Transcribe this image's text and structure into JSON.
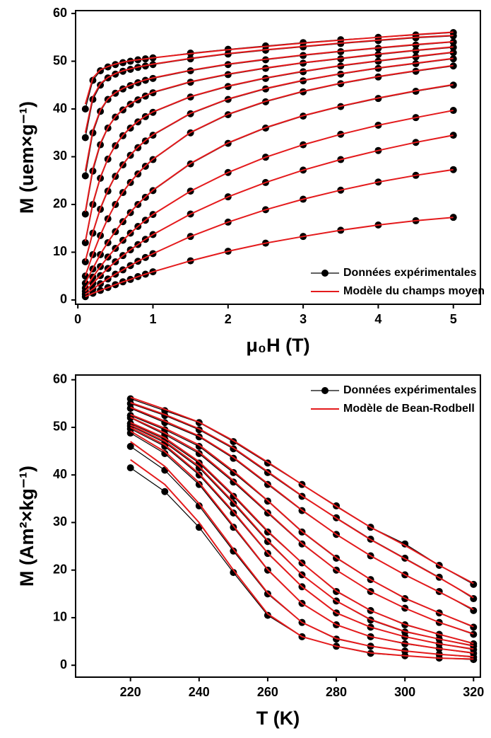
{
  "chart_data": [
    {
      "type": "line",
      "x_label": "μ₀H (T)",
      "y_label": "M (uem×g⁻¹)",
      "x": [
        0.1,
        0.2,
        0.3,
        0.4,
        0.5,
        0.6,
        0.7,
        0.8,
        0.9,
        1.0,
        1.5,
        2,
        2.5,
        3,
        3.5,
        4,
        4.5,
        5
      ],
      "xlim": [
        -0.03,
        5.36
      ],
      "ylim": [
        -0.9,
        60.6
      ],
      "xticks": [
        0,
        1,
        2,
        3,
        4,
        5
      ],
      "yticks": [
        0,
        10,
        20,
        30,
        40,
        50,
        60
      ],
      "legend": "lower right",
      "series": [
        {
          "name": "Données expérimentales",
          "color": "#000000",
          "markers": true,
          "curves": [
            [
              40,
              46,
              48,
              48.8,
              49.3,
              49.7,
              50,
              50.3,
              50.5,
              50.7,
              51.7,
              52.5,
              53.2,
              53.9,
              54.5,
              55,
              55.5,
              56
            ],
            [
              34,
              42,
              45,
              46.5,
              47.3,
              47.9,
              48.3,
              48.7,
              49,
              49.3,
              50.5,
              51.5,
              52.3,
              53,
              53.7,
              54.3,
              54.9,
              55.3
            ],
            [
              26,
              35,
              39.5,
              42,
              43.3,
              44.2,
              44.9,
              45.5,
              46,
              46.4,
              48,
              49.3,
              50.3,
              51.2,
              52,
              52.7,
              53.4,
              54
            ],
            [
              18,
              27,
              32.5,
              36,
              38.3,
              39.8,
              41,
              41.9,
              42.7,
              43.4,
              45.6,
              47.2,
              48.5,
              49.6,
              50.5,
              51.4,
              52.2,
              52.9
            ],
            [
              12,
              20,
              25.5,
              29.5,
              32.3,
              34.4,
              36,
              37.3,
              38.4,
              39.3,
              42.5,
              44.7,
              46.4,
              47.8,
              49,
              50,
              50.9,
              51.8
            ],
            [
              8,
              14,
              19,
              22.8,
              25.9,
              28.3,
              30.3,
              31.9,
              33.3,
              34.5,
              39,
              42,
              44.2,
              45.9,
              47.3,
              48.5,
              49.5,
              50.5
            ],
            [
              5,
              9.5,
              13.5,
              17,
              20,
              22.5,
              24.6,
              26.4,
              28,
              29.4,
              35,
              38.8,
              41.5,
              43.6,
              45.3,
              46.7,
              47.9,
              49
            ],
            [
              3.5,
              6.5,
              9.5,
              12,
              14.3,
              16.4,
              18.3,
              20,
              21.5,
              22.9,
              28.5,
              32.8,
              36,
              38.5,
              40.5,
              42.2,
              43.7,
              45
            ],
            [
              2.5,
              4.8,
              7,
              9,
              10.8,
              12.5,
              14,
              15.4,
              16.7,
              17.9,
              22.8,
              26.7,
              29.9,
              32.5,
              34.7,
              36.6,
              38.2,
              39.7
            ],
            [
              1.8,
              3.5,
              5.1,
              6.6,
              8,
              9.3,
              10.5,
              11.6,
              12.7,
              13.7,
              18,
              21.6,
              24.6,
              27.2,
              29.4,
              31.3,
              33,
              34.5
            ],
            [
              1.2,
              2.3,
              3.4,
              4.4,
              5.4,
              6.3,
              7.2,
              8.1,
              8.9,
              9.7,
              13.3,
              16.3,
              18.9,
              21.1,
              23,
              24.7,
              26.1,
              27.3
            ],
            [
              0.7,
              1.4,
              2,
              2.6,
              3.2,
              3.8,
              4.3,
              4.9,
              5.4,
              5.9,
              8.2,
              10.2,
              11.9,
              13.3,
              14.6,
              15.7,
              16.6,
              17.3
            ]
          ]
        },
        {
          "name": "Modèle du champs moyen",
          "color": "#e41a1c",
          "markers": false,
          "curves": [
            [
              41,
              46.5,
              48.2,
              48.9,
              49.4,
              49.8,
              50.1,
              50.3,
              50.5,
              50.7,
              51.6,
              52.4,
              53.1,
              53.8,
              54.4,
              55,
              55.6,
              56.1
            ],
            [
              35,
              42.5,
              45.3,
              46.6,
              47.4,
              48,
              48.4,
              48.8,
              49.1,
              49.4,
              50.6,
              51.6,
              52.4,
              53.1,
              53.8,
              54.4,
              55,
              55.4
            ],
            [
              27,
              35.5,
              39.8,
              42.1,
              43.4,
              44.3,
              45,
              45.6,
              46.1,
              46.5,
              48.1,
              49.4,
              50.4,
              51.3,
              52.1,
              52.8,
              53.5,
              54.1
            ],
            [
              18.5,
              27.5,
              32.8,
              36.1,
              38.4,
              39.9,
              41.1,
              42,
              42.8,
              43.5,
              45.7,
              47.3,
              48.6,
              49.7,
              50.6,
              51.5,
              52.3,
              53
            ],
            [
              12.3,
              20.3,
              25.7,
              29.6,
              32.4,
              34.5,
              36.1,
              37.4,
              38.5,
              39.4,
              42.6,
              44.8,
              46.5,
              47.9,
              49.1,
              50.1,
              51,
              51.9
            ],
            [
              8.2,
              14.2,
              19.2,
              23,
              26,
              28.4,
              30.4,
              32,
              33.4,
              34.6,
              39.1,
              42.1,
              44.3,
              46,
              47.4,
              48.6,
              49.6,
              50.6
            ],
            [
              5.1,
              9.6,
              13.6,
              17.1,
              20.1,
              22.6,
              24.7,
              26.5,
              28.1,
              29.5,
              35.1,
              38.9,
              41.6,
              43.7,
              45.4,
              46.8,
              48,
              49.1
            ],
            [
              3.6,
              6.6,
              9.6,
              12.1,
              14.4,
              16.5,
              18.4,
              20.1,
              21.6,
              23,
              28.6,
              32.9,
              36.1,
              38.6,
              40.6,
              42.3,
              43.8,
              45.1
            ],
            [
              2.5,
              4.8,
              7,
              9,
              10.8,
              12.5,
              14,
              15.4,
              16.7,
              17.9,
              22.8,
              26.7,
              29.9,
              32.5,
              34.7,
              36.6,
              38.2,
              39.7
            ],
            [
              1.8,
              3.5,
              5.1,
              6.6,
              8,
              9.3,
              10.5,
              11.6,
              12.7,
              13.7,
              18,
              21.6,
              24.6,
              27.2,
              29.4,
              31.3,
              33,
              34.5
            ],
            [
              1.2,
              2.3,
              3.4,
              4.4,
              5.4,
              6.3,
              7.2,
              8.1,
              8.9,
              9.7,
              13.3,
              16.3,
              18.9,
              21.1,
              23,
              24.7,
              26.1,
              27.3
            ],
            [
              0.7,
              1.4,
              2,
              2.6,
              3.2,
              3.8,
              4.3,
              4.9,
              5.4,
              5.9,
              8.2,
              10.2,
              11.9,
              13.3,
              14.6,
              15.7,
              16.6,
              17.3
            ]
          ]
        }
      ]
    },
    {
      "type": "line",
      "x_label": "T (K)",
      "y_label": "M (Am²×kg⁻¹)",
      "x": [
        220,
        230,
        240,
        250,
        260,
        270,
        280,
        290,
        300,
        310,
        320
      ],
      "xlim": [
        204,
        322
      ],
      "ylim": [
        -2.5,
        61
      ],
      "xticks": [
        220,
        240,
        260,
        280,
        300,
        320
      ],
      "yticks": [
        0,
        10,
        20,
        30,
        40,
        50,
        60
      ],
      "legend": "upper right",
      "series": [
        {
          "name": "Données expérimentales",
          "color": "#000000",
          "markers": true,
          "curves": [
            [
              56,
              53.5,
              51,
              47,
              42.5,
              38,
              33.5,
              29,
              25.5,
              21,
              17
            ],
            [
              55,
              52.5,
              49.5,
              45.5,
              40.5,
              35.5,
              31,
              26.5,
              22.5,
              18.5,
              14
            ],
            [
              54,
              51,
              48,
              43.5,
              38,
              32.5,
              27.5,
              23,
              19,
              15.5,
              11.5
            ],
            [
              52.5,
              49.5,
              46,
              40.5,
              34.5,
              28,
              22.5,
              18,
              14,
              11,
              8
            ],
            [
              52,
              48.5,
              44.5,
              38.5,
              32,
              25.5,
              20,
              15.5,
              12,
              9,
              6.5
            ],
            [
              50.8,
              47.5,
              42.5,
              35.5,
              28,
              21.5,
              15.5,
              11.5,
              8.5,
              6.5,
              4.5
            ],
            [
              50.3,
              46.8,
              41.5,
              34,
              26,
              19,
              13.5,
              9.5,
              7,
              5.5,
              4
            ],
            [
              49.7,
              46,
              40,
              32,
              23.5,
              16.5,
              11,
              8,
              6,
              4.5,
              3.3
            ],
            [
              48.8,
              44.5,
              38,
              29,
              20,
              13,
              8.5,
              6,
              4.5,
              3.5,
              2.5
            ],
            [
              46,
              41,
              33.5,
              24,
              15,
              9,
              5.5,
              4,
              3,
              2.3,
              1.7
            ],
            [
              41.5,
              36.5,
              29,
              19.5,
              10.5,
              6,
              4,
              2.5,
              2,
              1.5,
              1.2
            ]
          ]
        },
        {
          "name": "Modèle de Bean-Rodbell",
          "color": "#e41a1c",
          "markers": false,
          "curves": [
            [
              56.3,
              53.8,
              51.1,
              47.2,
              42.7,
              38,
              33.4,
              29,
              25.2,
              21,
              17.2
            ],
            [
              55.2,
              52.7,
              49.7,
              45.7,
              40.7,
              35.6,
              30.9,
              26.4,
              22.4,
              18.4,
              14.2
            ],
            [
              54.2,
              51.3,
              48.2,
              43.7,
              38.2,
              32.6,
              27.5,
              23,
              19,
              15.4,
              11.7
            ],
            [
              52.7,
              49.8,
              46.3,
              40.8,
              34.6,
              28.1,
              22.6,
              18,
              14.1,
              11,
              8.1
            ],
            [
              52.1,
              48.8,
              44.8,
              38.8,
              32.2,
              25.6,
              20,
              15.5,
              12,
              9,
              6.6
            ],
            [
              51,
              47.8,
              42.8,
              35.8,
              28.2,
              21.5,
              15.6,
              11.5,
              8.6,
              6.5,
              4.6
            ],
            [
              50.5,
              47.1,
              41.8,
              34.3,
              26.2,
              19,
              13.5,
              9.6,
              7.1,
              5.5,
              4.1
            ],
            [
              50,
              46.3,
              40.3,
              32.3,
              23.6,
              16.5,
              11,
              8,
              6,
              4.5,
              3.4
            ],
            [
              49.2,
              44.9,
              38.4,
              29.3,
              20.1,
              13,
              8.5,
              6,
              4.6,
              3.5,
              2.6
            ],
            [
              47,
              41.8,
              34,
              24.4,
              15.2,
              9,
              5.6,
              4,
              3,
              2.3,
              1.8
            ],
            [
              43.2,
              38,
              30,
              20,
              10.8,
              6,
              4,
              2.6,
              2,
              1.5,
              1.3
            ]
          ]
        }
      ]
    }
  ]
}
